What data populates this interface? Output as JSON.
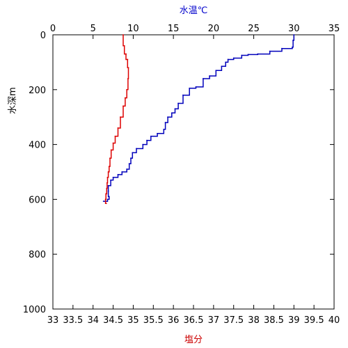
{
  "chart_data": {
    "type": "line",
    "x_top": {
      "label": "水温℃",
      "label_color": "#0000cc",
      "range": [
        0,
        35
      ],
      "ticks": [
        0,
        5,
        10,
        15,
        20,
        25,
        30,
        35
      ],
      "tick_labels": [
        "0",
        "5",
        "10",
        "15",
        "20",
        "25",
        "30",
        "35"
      ]
    },
    "x_bottom": {
      "label": "塩分",
      "label_color": "#cc0000",
      "range": [
        33,
        40
      ],
      "ticks": [
        33,
        33.5,
        34,
        34.5,
        35,
        35.5,
        36,
        36.5,
        37,
        37.5,
        38,
        38.5,
        39,
        39.5,
        40
      ],
      "tick_labels": [
        "33",
        "33.5",
        "34",
        "34.5",
        "35",
        "35.5",
        "36",
        "36.5",
        "37",
        "37.5",
        "38",
        "38.5",
        "39",
        "39.5",
        "40"
      ]
    },
    "y": {
      "label": "水深m",
      "range": [
        0,
        1000
      ],
      "inverted": true,
      "ticks": [
        0,
        200,
        400,
        600,
        800,
        1000
      ],
      "tick_labels": [
        "0",
        "200",
        "400",
        "600",
        "800",
        "1000"
      ]
    },
    "series": [
      {
        "axis": "top",
        "color": "#0000bb",
        "x": [
          30.0,
          29.9,
          29.8,
          28.5,
          27.0,
          25.5,
          24.3,
          23.5,
          22.5,
          21.8,
          21.5,
          21.0,
          20.3,
          19.5,
          18.7,
          17.8,
          17.0,
          16.2,
          15.6,
          15.2,
          14.8,
          14.3,
          14.0,
          13.8,
          13.0,
          12.2,
          11.7,
          11.2,
          10.4,
          9.9,
          9.7,
          9.5,
          9.2,
          8.6,
          8.1,
          7.5,
          7.2,
          6.9,
          6.9,
          7.0,
          6.8,
          6.3
        ],
        "y": [
          0,
          20,
          45,
          50,
          60,
          70,
          72,
          75,
          85,
          90,
          100,
          115,
          130,
          150,
          160,
          190,
          195,
          220,
          250,
          270,
          285,
          300,
          320,
          345,
          360,
          370,
          385,
          400,
          415,
          430,
          450,
          470,
          490,
          500,
          510,
          520,
          530,
          550,
          570,
          590,
          600,
          607
        ]
      },
      {
        "axis": "bottom",
        "color": "#dd0000",
        "x": [
          34.75,
          34.78,
          34.82,
          34.86,
          34.88,
          34.87,
          34.84,
          34.8,
          34.75,
          34.68,
          34.62,
          34.55,
          34.5,
          34.45,
          34.42,
          34.4,
          34.38,
          34.36,
          34.35,
          34.34,
          34.32,
          34.31,
          34.33
        ],
        "y": [
          0,
          40,
          70,
          90,
          120,
          160,
          200,
          230,
          260,
          300,
          340,
          370,
          395,
          420,
          450,
          480,
          500,
          520,
          540,
          560,
          580,
          600,
          615
        ]
      }
    ],
    "grid": false,
    "legend": "none"
  }
}
